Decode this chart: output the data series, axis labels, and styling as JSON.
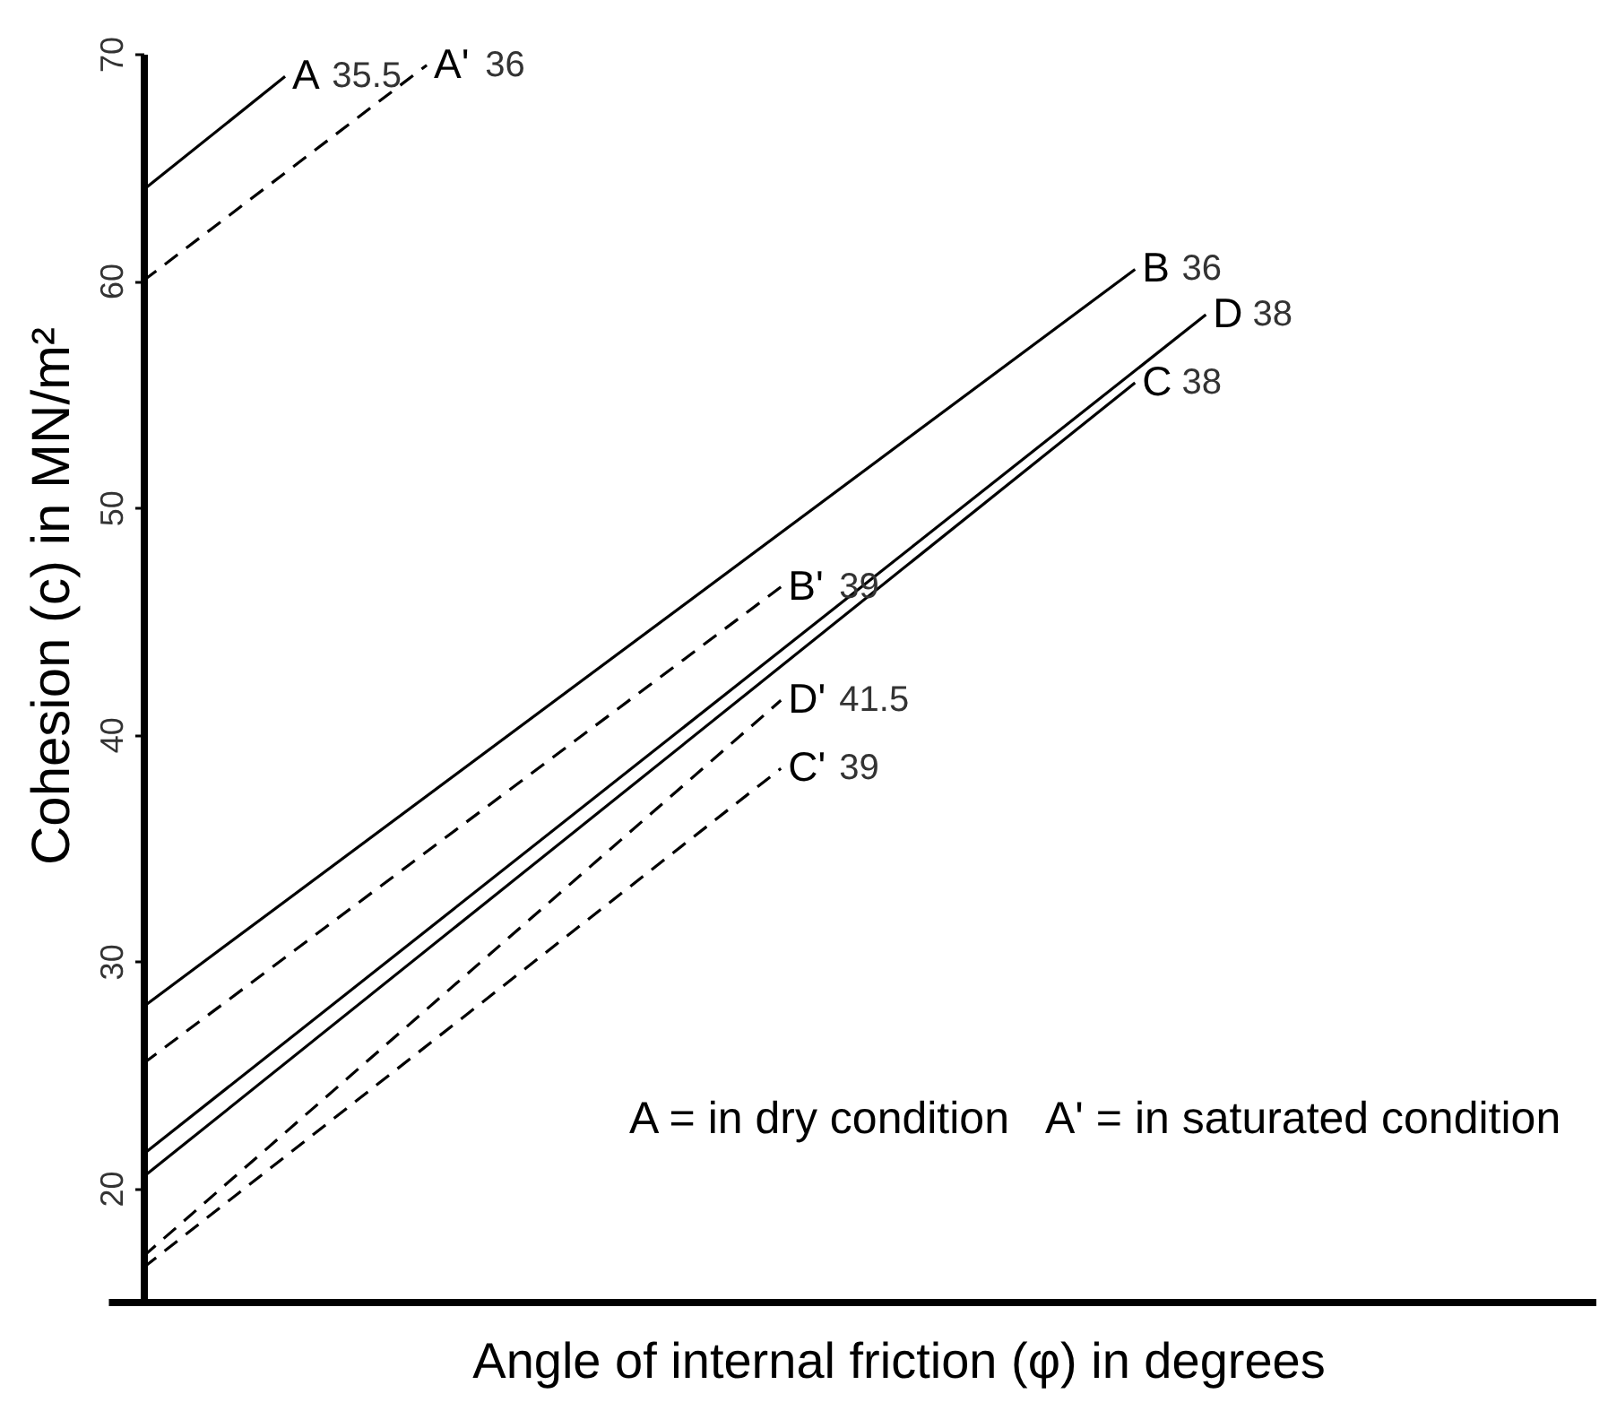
{
  "chart_data": {
    "type": "line",
    "xlabel": "Angle of internal friction (φ) in degrees",
    "ylabel": "Cohesion (c) in MN/m²",
    "categories": [
      null,
      null,
      null,
      null,
      null,
      null,
      null,
      null,
      null,
      null,
      null,
      null,
      null,
      null,
      null,
      null,
      null,
      null,
      null,
      null,
      null
    ],
    "ylim": [
      15,
      70
    ],
    "yticks": [
      20,
      30,
      40,
      50,
      60,
      70
    ],
    "grid": false,
    "tick_labels": "y",
    "series": [
      {
        "name": "A",
        "color": "#000000",
        "line_style": "solid",
        "values": [
          64,
          null,
          69,
          null,
          null,
          null,
          null,
          null,
          null,
          null,
          null,
          null,
          null,
          null,
          null,
          null,
          null,
          null,
          null,
          null,
          null
        ]
      },
      {
        "name": "A'",
        "color": "#000000",
        "line_style": "dashed",
        "values": [
          60,
          null,
          null,
          null,
          69.5,
          null,
          null,
          null,
          null,
          null,
          null,
          null,
          null,
          null,
          null,
          null,
          null,
          null,
          null,
          null,
          null
        ]
      },
      {
        "name": "B",
        "color": "#000000",
        "line_style": "solid",
        "values": [
          28,
          null,
          null,
          null,
          null,
          null,
          null,
          null,
          null,
          null,
          null,
          null,
          null,
          null,
          60.5,
          null,
          null,
          null,
          null,
          null,
          null
        ]
      },
      {
        "name": "B'",
        "color": "#000000",
        "line_style": "dashed",
        "values": [
          25.5,
          null,
          null,
          null,
          null,
          null,
          null,
          null,
          null,
          46.5,
          null,
          null,
          null,
          null,
          null,
          null,
          null,
          null,
          null,
          null,
          null
        ]
      },
      {
        "name": "C",
        "color": "#000000",
        "line_style": "solid",
        "values": [
          20.5,
          null,
          null,
          null,
          null,
          null,
          null,
          null,
          null,
          null,
          null,
          null,
          null,
          null,
          55.5,
          null,
          null,
          null,
          null,
          null,
          null
        ]
      },
      {
        "name": "C'",
        "color": "#000000",
        "line_style": "dashed",
        "values": [
          16.5,
          null,
          null,
          null,
          null,
          null,
          null,
          null,
          null,
          38.5,
          null,
          null,
          null,
          null,
          null,
          null,
          null,
          null,
          null,
          null,
          null
        ]
      },
      {
        "name": "D",
        "color": "#000000",
        "line_style": "solid",
        "values": [
          21.5,
          null,
          null,
          null,
          null,
          null,
          null,
          null,
          null,
          null,
          null,
          null,
          null,
          null,
          null,
          58.5,
          null,
          null,
          null,
          null,
          null
        ]
      },
      {
        "name": "D'",
        "color": "#000000",
        "line_style": "dashed",
        "values": [
          17,
          null,
          null,
          null,
          null,
          null,
          null,
          null,
          null,
          41.5,
          null,
          null,
          null,
          null,
          null,
          null,
          null,
          null,
          null,
          null,
          null
        ]
      }
    ],
    "annotations": [
      "35.5",
      "36",
      "36",
      "39",
      "38",
      "39",
      "38",
      "41.5",
      "A = in dry condition",
      "A' = in saturated condition"
    ]
  }
}
